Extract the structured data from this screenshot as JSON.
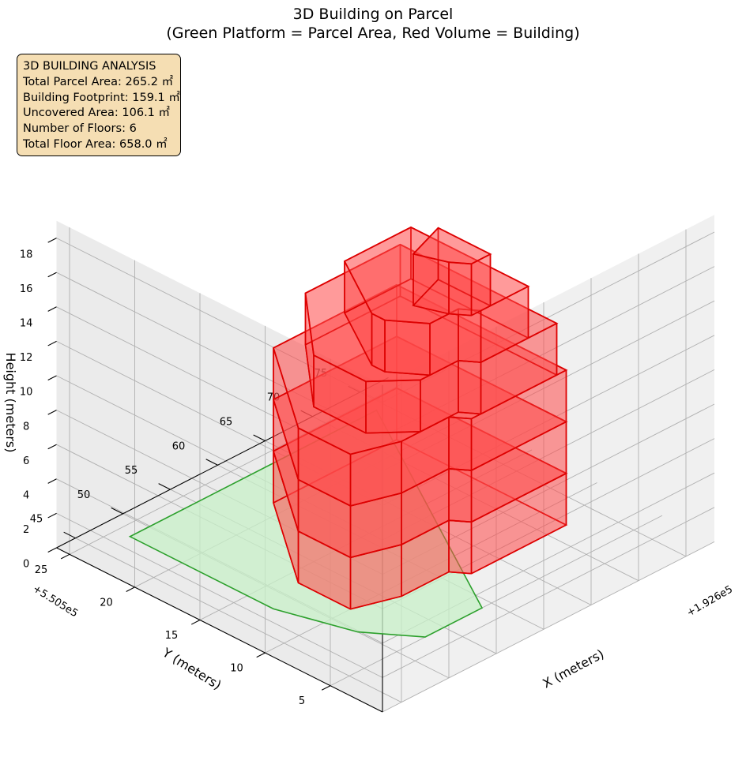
{
  "title": {
    "line1": "3D Building on Parcel",
    "line2": "(Green Platform = Parcel Area, Red Volume = Building)"
  },
  "info_box": {
    "heading": "3D BUILDING ANALYSIS",
    "lines": [
      "Total Parcel Area: 265.2 ㎡",
      "Building Footprint: 159.1 ㎡",
      "Uncovered Area: 106.1 ㎡",
      "Number of Floors: 6",
      "Total Floor Area: 658.0 ㎡"
    ]
  },
  "colors": {
    "parcel_fill": "#c8f0c8",
    "parcel_edge": "#2ca02c",
    "building_fill": "#ff4d4d",
    "building_edge": "#dd0000",
    "pane": "#f2f2f2",
    "grid": "#b0b0b0"
  },
  "chart_data": {
    "type": "3d-extruded-polygon",
    "title": "3D Building on Parcel\n(Green Platform = Parcel Area, Red Volume = Building)",
    "xlabel": "X (meters)",
    "ylabel": "Y (meters)",
    "zlabel": "Height (meters)",
    "x_offset_label": "+1.926e5",
    "y_offset_label": "+5.505e5",
    "x_ticks": [
      45,
      50,
      55,
      60,
      65,
      70,
      75
    ],
    "y_ticks": [
      5,
      10,
      15,
      20,
      25
    ],
    "z_ticks": [
      0,
      2,
      4,
      6,
      8,
      10,
      12,
      14,
      16,
      18
    ],
    "xlim": [
      43,
      78
    ],
    "ylim": [
      1,
      26
    ],
    "zlim": [
      0,
      19
    ],
    "grid": true,
    "parcel_polygon_xy": [
      [
        74,
        24
      ],
      [
        59,
        5
      ],
      [
        53,
        5
      ],
      [
        50,
        8
      ],
      [
        48,
        13
      ],
      [
        48,
        24
      ]
    ],
    "floor_height_m": 3,
    "building_floors": [
      {
        "floor": 1,
        "z": [
          0,
          3
        ],
        "polygon_xy": [
          [
            72,
            21
          ],
          [
            72,
            8
          ],
          [
            62,
            8
          ],
          [
            61,
            9
          ],
          [
            56,
            9
          ],
          [
            52,
            10
          ],
          [
            52,
            14
          ],
          [
            59,
            21
          ]
        ]
      },
      {
        "floor": 2,
        "z": [
          3,
          6
        ],
        "polygon_xy": [
          [
            72,
            21
          ],
          [
            72,
            8
          ],
          [
            62,
            8
          ],
          [
            61,
            9
          ],
          [
            56,
            9
          ],
          [
            52,
            10
          ],
          [
            52,
            14
          ],
          [
            59,
            21
          ]
        ]
      },
      {
        "floor": 3,
        "z": [
          6,
          9
        ],
        "polygon_xy": [
          [
            72,
            21
          ],
          [
            72,
            8
          ],
          [
            62,
            8
          ],
          [
            61,
            9
          ],
          [
            56,
            9
          ],
          [
            52,
            10
          ],
          [
            52,
            14
          ],
          [
            59,
            21
          ]
        ]
      },
      {
        "floor": 4,
        "z": [
          9,
          12
        ],
        "polygon_xy": [
          [
            71,
            20
          ],
          [
            71,
            8
          ],
          [
            63,
            8
          ],
          [
            62,
            9
          ],
          [
            58,
            9
          ],
          [
            55,
            11
          ],
          [
            55,
            15
          ],
          [
            61,
            20
          ]
        ]
      },
      {
        "floor": 5,
        "z": [
          12,
          15
        ],
        "polygon_xy": [
          [
            68,
            17
          ],
          [
            68,
            8
          ],
          [
            63,
            8
          ],
          [
            62,
            9
          ],
          [
            59,
            9
          ],
          [
            57,
            11
          ],
          [
            57,
            12
          ],
          [
            61,
            17
          ]
        ]
      },
      {
        "floor": 6,
        "z": [
          15,
          18
        ],
        "polygon_xy": [
          [
            64,
            12
          ],
          [
            64,
            8
          ],
          [
            62,
            8
          ],
          [
            61,
            9
          ],
          [
            60,
            11
          ]
        ]
      }
    ]
  }
}
